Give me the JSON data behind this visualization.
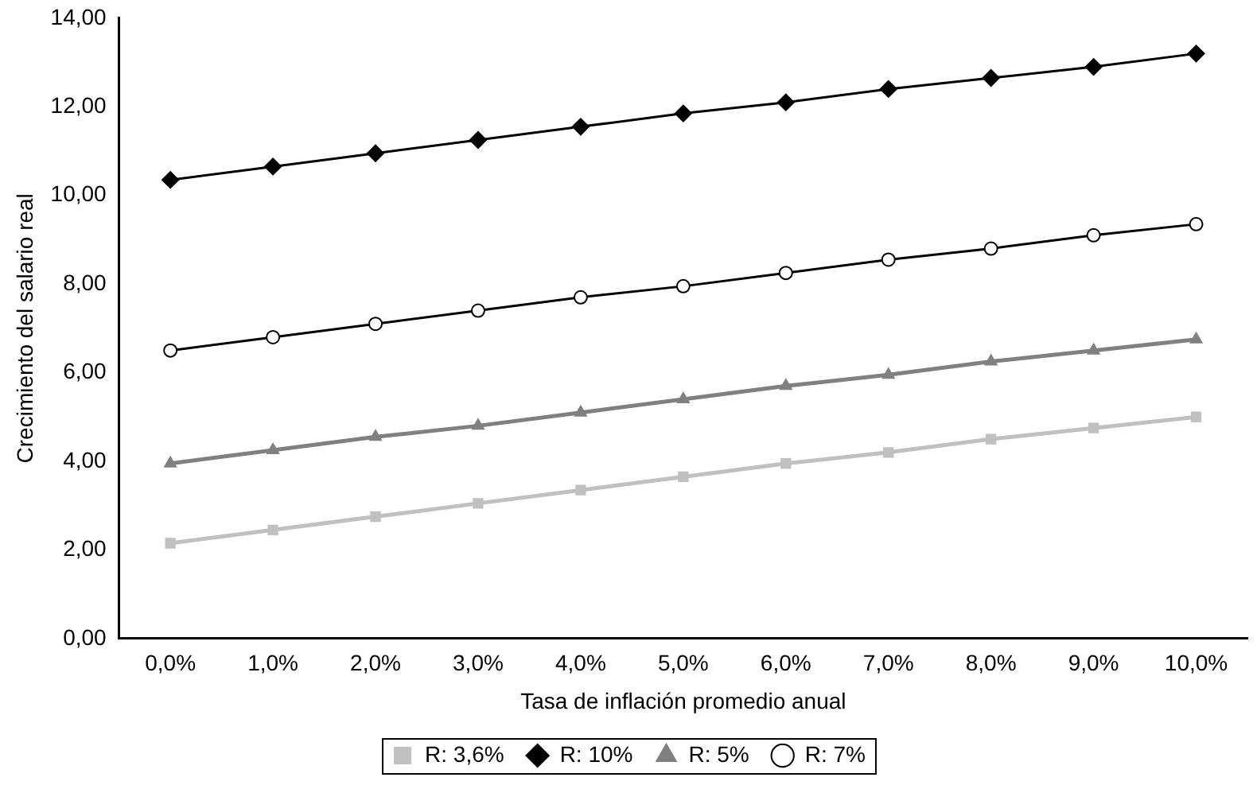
{
  "chart_data": {
    "type": "line",
    "xlabel": "Tasa de inflación promedio anual",
    "ylabel": "Crecimiento del salario real",
    "categories": [
      "0,0%",
      "1,0%",
      "2,0%",
      "3,0%",
      "4,0%",
      "5,0%",
      "6,0%",
      "7,0%",
      "8,0%",
      "9,0%",
      "10,0%"
    ],
    "series": [
      {
        "name": "R: 3,6%",
        "color": "#c0c0c0",
        "marker": "square",
        "values": [
          2.15,
          2.45,
          2.75,
          3.05,
          3.35,
          3.65,
          3.95,
          4.2,
          4.5,
          4.75,
          5.0
        ]
      },
      {
        "name": "R: 10%",
        "color": "#000000",
        "marker": "diamond",
        "values": [
          10.35,
          10.65,
          10.95,
          11.25,
          11.55,
          11.85,
          12.1,
          12.4,
          12.65,
          12.9,
          13.2
        ]
      },
      {
        "name": "R: 5%",
        "color": "#808080",
        "marker": "triangle",
        "values": [
          3.95,
          4.25,
          4.55,
          4.8,
          5.1,
          5.4,
          5.7,
          5.95,
          6.25,
          6.5,
          6.75
        ]
      },
      {
        "name": "R: 7%",
        "color": "#000000",
        "marker": "circle",
        "values": [
          6.5,
          6.8,
          7.1,
          7.4,
          7.7,
          7.95,
          8.25,
          8.55,
          8.8,
          9.1,
          9.35
        ]
      }
    ],
    "ylim": [
      0,
      14
    ],
    "yticks": [
      {
        "value": 0,
        "label": "0,00"
      },
      {
        "value": 2,
        "label": "2,00"
      },
      {
        "value": 4,
        "label": "4,00"
      },
      {
        "value": 6,
        "label": "6,00"
      },
      {
        "value": 8,
        "label": "8,00"
      },
      {
        "value": 10,
        "label": "10,00"
      },
      {
        "value": 12,
        "label": "12,00"
      },
      {
        "value": 14,
        "label": "14,00"
      }
    ],
    "grid": false,
    "legend": "bottom",
    "line_style": "solid"
  }
}
